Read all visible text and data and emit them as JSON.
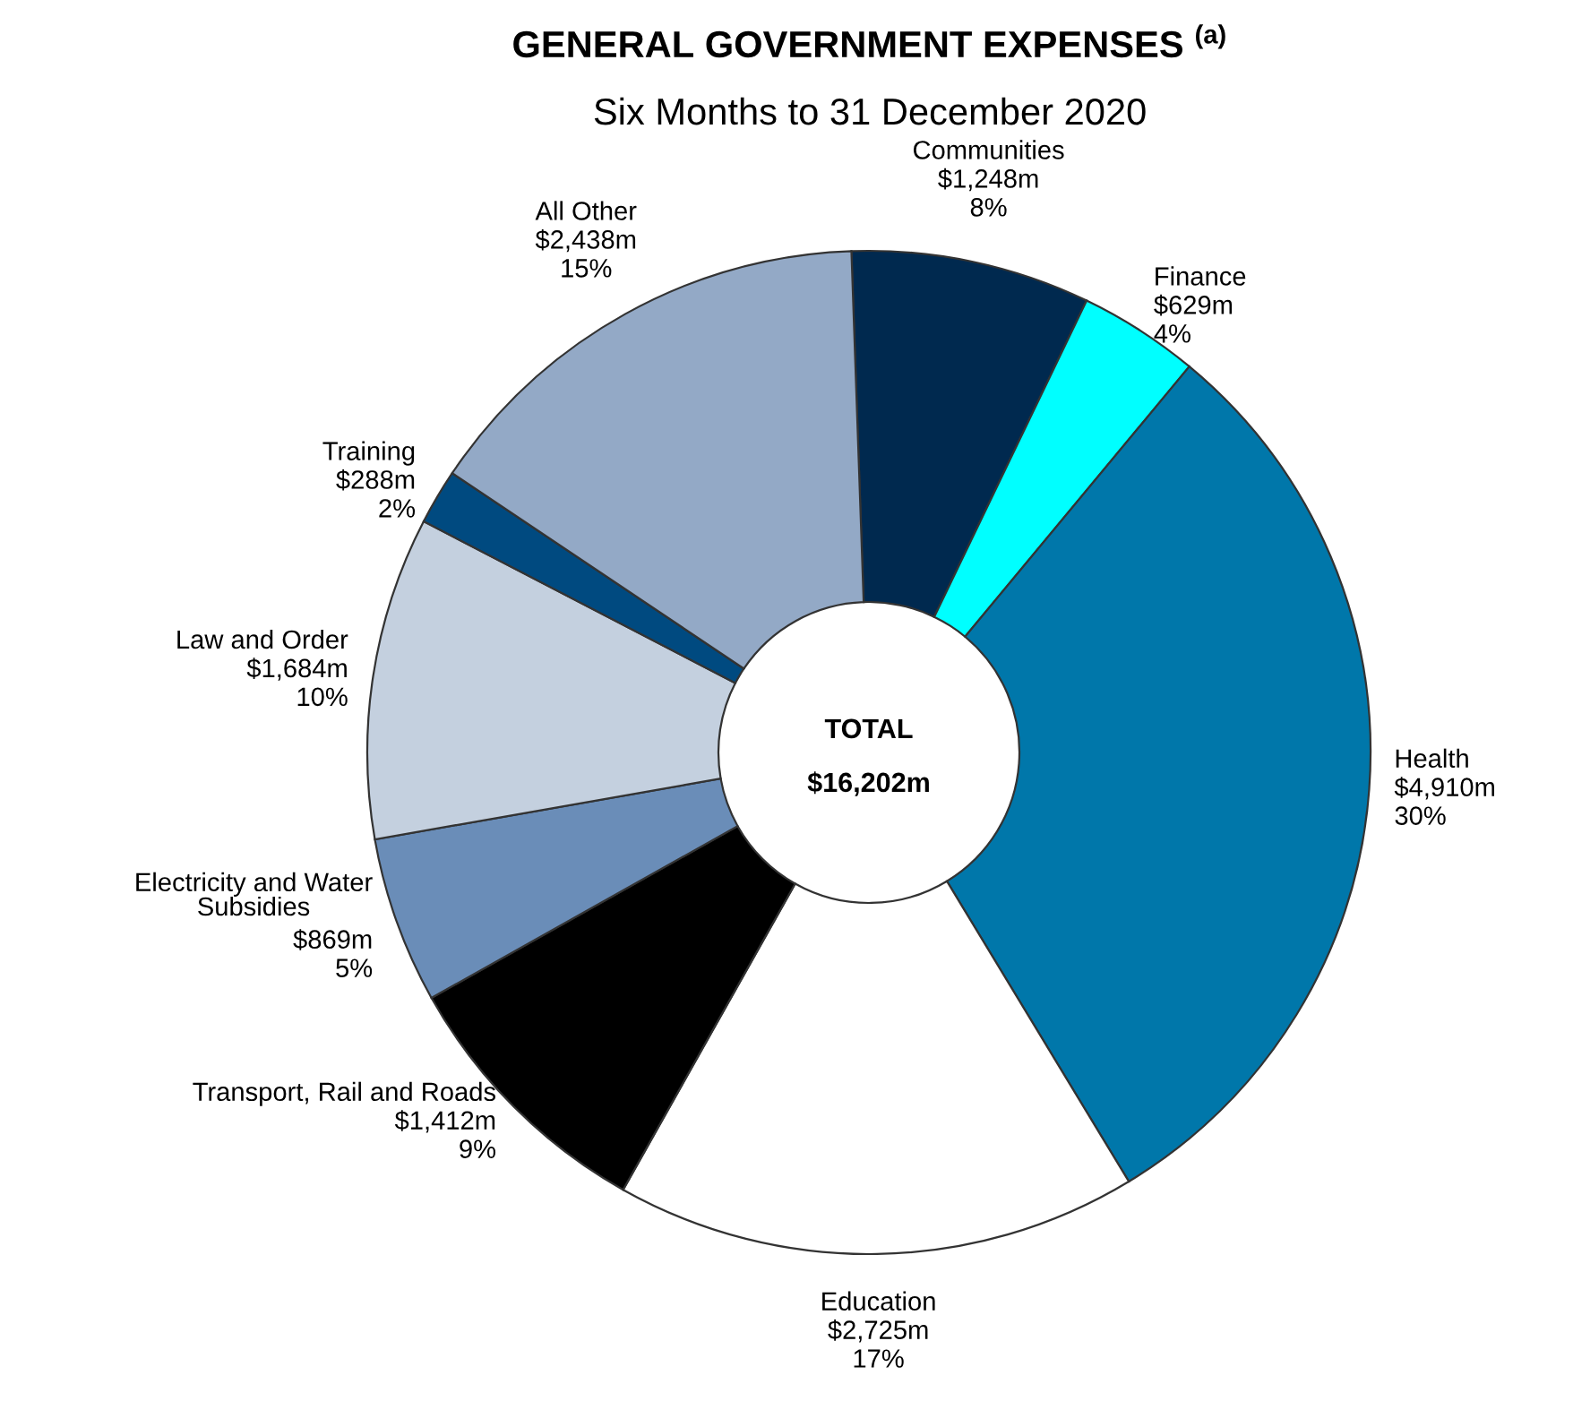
{
  "chart_data": {
    "type": "donut",
    "title": "GENERAL GOVERNMENT EXPENSES $^{(a)}$",
    "subtitle": "Six Months to 31 December 2020",
    "categories": [
      "Communities",
      "Finance",
      "Health",
      "Education",
      "Transport, Rail and Roads",
      "Electricity and Water\nSubsidies",
      "Law and Order",
      "Training",
      "All Other"
    ],
    "values": [
      1248,
      629,
      4910,
      2725,
      1412,
      869,
      1684,
      288,
      2438
    ],
    "value_labels": [
      "$1,248m",
      "$629m",
      "$4,910m",
      "$2,725m",
      "$1,412m",
      "$869m",
      "$1,684m",
      "$288m",
      "$2,438m"
    ],
    "colors": [
      "#00294f",
      "#00ffff",
      "#0077aa",
      "#ffffff",
      "#000000",
      "#6a8db8",
      "#c4d0df",
      "#004a80",
      "#93a9c6"
    ],
    "annotations": [
      "TOTAL",
      "$16,202m",
      {
        "text": "8%",
        "x": "Communities"
      },
      {
        "text": "4%",
        "x": "Finance"
      },
      {
        "text": "30%",
        "x": "Health"
      },
      {
        "text": "17%",
        "x": "Education"
      },
      {
        "text": "9%",
        "x": "Transport, Rail and Roads"
      },
      {
        "text": "5%",
        "x": "Electricity and Water\nSubsidies"
      },
      {
        "text": "10%",
        "x": "Law and Order"
      },
      {
        "text": "2%",
        "x": "Training"
      },
      {
        "text": "15%",
        "x": "All Other"
      }
    ]
  }
}
